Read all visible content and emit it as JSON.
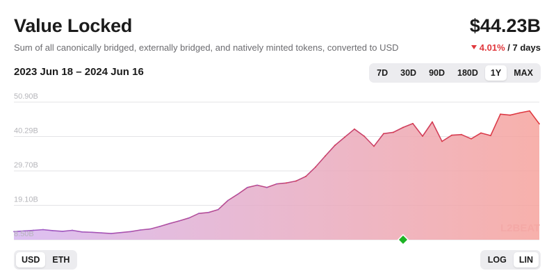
{
  "header": {
    "title": "Value Locked",
    "subtitle": "Sum of all canonically bridged, externally bridged, and natively minted tokens, converted to USD",
    "value": "$44.23B",
    "change_pct": "4.01%",
    "change_period": "/ 7 days",
    "date_range": "2023 Jun 18 – 2024 Jun 16"
  },
  "timeframes": [
    "7D",
    "30D",
    "90D",
    "180D",
    "1Y",
    "MAX"
  ],
  "timeframe_selected": "1Y",
  "currency_toggle": {
    "options": [
      "USD",
      "ETH"
    ],
    "selected": "USD"
  },
  "scale_toggle": {
    "options": [
      "LOG",
      "LIN"
    ],
    "selected": "LIN"
  },
  "watermark": {
    "text": "L2BEAT"
  },
  "colors": {
    "line_start": "#9b59c9",
    "line_end": "#e0373c",
    "fill_start": "#d6b6f0",
    "fill_end": "#f6a39d",
    "negative": "#e0373c",
    "marker": "#1cb324"
  },
  "chart_data": {
    "type": "area",
    "title": "Value Locked",
    "x_range": [
      "2023-06-18",
      "2024-06-16"
    ],
    "yticks": [
      "8.50B",
      "19.10B",
      "29.70B",
      "40.29B",
      "50.90B"
    ],
    "ytick_values": [
      8.5,
      19.1,
      29.7,
      40.29,
      50.9
    ],
    "ylim": [
      8.5,
      50.9
    ],
    "grid": true,
    "marker_value": 8.5,
    "marker_index": 40,
    "series": [
      {
        "values": [
          11.0,
          11.2,
          11.4,
          11.6,
          11.3,
          11.1,
          11.4,
          10.9,
          10.8,
          10.6,
          10.4,
          10.7,
          11.0,
          11.5,
          11.8,
          12.6,
          13.5,
          14.3,
          15.2,
          16.6,
          16.9,
          17.8,
          20.6,
          22.5,
          24.6,
          25.3,
          24.6,
          25.7,
          26.0,
          26.6,
          28.0,
          30.9,
          34.3,
          37.6,
          40.1,
          42.6,
          40.4,
          37.3,
          41.2,
          41.6,
          43.1,
          44.3,
          40.4,
          44.8,
          38.8,
          40.7,
          40.9,
          39.6,
          41.4,
          40.6,
          47.2,
          46.9,
          47.6,
          48.2,
          44.2
        ]
      }
    ]
  }
}
